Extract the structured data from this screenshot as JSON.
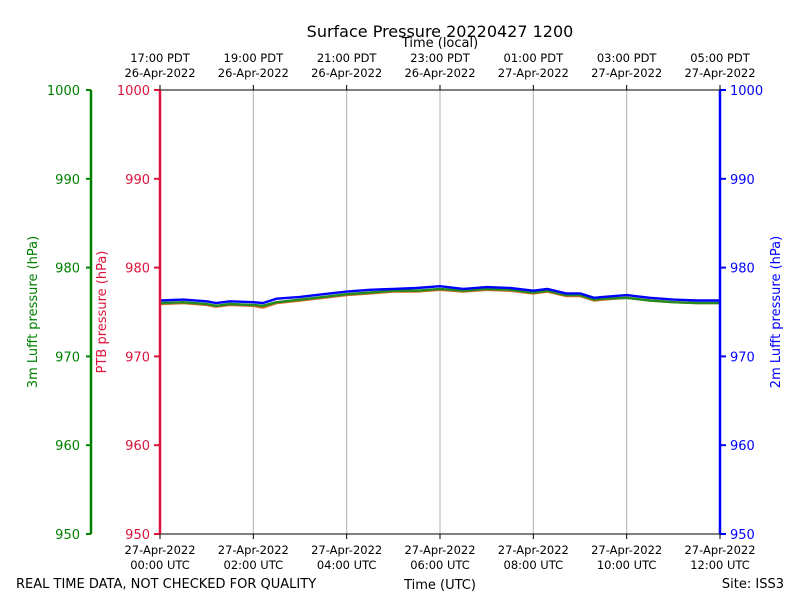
{
  "chart_data": {
    "type": "line",
    "title": "Surface Pressure 20220427 1200",
    "xlabel": "Time (UTC)",
    "xlabel_top": "Time (local)",
    "footer_left": "REAL TIME DATA, NOT CHECKED FOR QUALITY",
    "footer_right": "Site: ISS3",
    "x_range_hours_utc": [
      0,
      12
    ],
    "ylim": [
      950,
      1000
    ],
    "y_ticks": [
      "950",
      "960",
      "970",
      "980",
      "990",
      "1000"
    ],
    "grid": "vertical",
    "colors": {
      "lufft3m": "#008000",
      "ptb": "#dc143c",
      "lufft2m": "#0000ff",
      "series_ptb": "#d2691e",
      "series_lufft3m": "#228b22",
      "series_lufft2m": "#0000ff"
    },
    "axes": [
      {
        "side": "left-outer",
        "label": "3m Lufft pressure (hPa)"
      },
      {
        "side": "left-inner",
        "label": "PTB pressure (hPa)"
      },
      {
        "side": "right",
        "label": "2m Lufft pressure (hPa)"
      }
    ],
    "bottom_ticks": [
      {
        "date": "27-Apr-2022",
        "time": "00:00 UTC"
      },
      {
        "date": "27-Apr-2022",
        "time": "02:00 UTC"
      },
      {
        "date": "27-Apr-2022",
        "time": "04:00 UTC"
      },
      {
        "date": "27-Apr-2022",
        "time": "06:00 UTC"
      },
      {
        "date": "27-Apr-2022",
        "time": "08:00 UTC"
      },
      {
        "date": "27-Apr-2022",
        "time": "10:00 UTC"
      },
      {
        "date": "27-Apr-2022",
        "time": "12:00 UTC"
      }
    ],
    "top_ticks": [
      {
        "time": "17:00 PDT",
        "date": "26-Apr-2022"
      },
      {
        "time": "19:00 PDT",
        "date": "26-Apr-2022"
      },
      {
        "time": "21:00 PDT",
        "date": "26-Apr-2022"
      },
      {
        "time": "23:00 PDT",
        "date": "26-Apr-2022"
      },
      {
        "time": "01:00 PDT",
        "date": "27-Apr-2022"
      },
      {
        "time": "03:00 PDT",
        "date": "27-Apr-2022"
      },
      {
        "time": "05:00 PDT",
        "date": "27-Apr-2022"
      }
    ],
    "x": [
      0,
      0.5,
      1,
      1.2,
      1.5,
      2,
      2.2,
      2.5,
      3,
      3.5,
      4,
      4.5,
      5,
      5.5,
      6,
      6.5,
      7,
      7.5,
      8,
      8.3,
      8.7,
      9,
      9.3,
      9.5,
      10,
      10.5,
      11,
      11.5,
      12
    ],
    "series": [
      {
        "name": "PTB",
        "values": [
          975.9,
          976.0,
          975.8,
          975.6,
          975.8,
          975.7,
          975.5,
          976.0,
          976.3,
          976.6,
          976.9,
          977.1,
          977.3,
          977.3,
          977.5,
          977.3,
          977.5,
          977.4,
          977.1,
          977.3,
          976.8,
          976.8,
          976.3,
          976.4,
          976.6,
          976.3,
          976.1,
          976.0,
          976.0
        ]
      },
      {
        "name": "3m Lufft",
        "values": [
          976.0,
          976.1,
          975.9,
          975.7,
          975.9,
          975.8,
          975.7,
          976.1,
          976.4,
          976.7,
          977.0,
          977.2,
          977.4,
          977.4,
          977.6,
          977.4,
          977.6,
          977.5,
          977.2,
          977.4,
          976.9,
          976.9,
          976.4,
          976.5,
          976.6,
          976.3,
          976.1,
          976.0,
          976.0
        ]
      },
      {
        "name": "2m Lufft",
        "values": [
          976.3,
          976.4,
          976.2,
          976.0,
          976.2,
          976.1,
          976.0,
          976.5,
          976.7,
          977.0,
          977.3,
          977.5,
          977.6,
          977.7,
          977.9,
          977.6,
          977.8,
          977.7,
          977.4,
          977.6,
          977.1,
          977.1,
          976.6,
          976.7,
          976.9,
          976.6,
          976.4,
          976.3,
          976.3
        ]
      }
    ]
  }
}
